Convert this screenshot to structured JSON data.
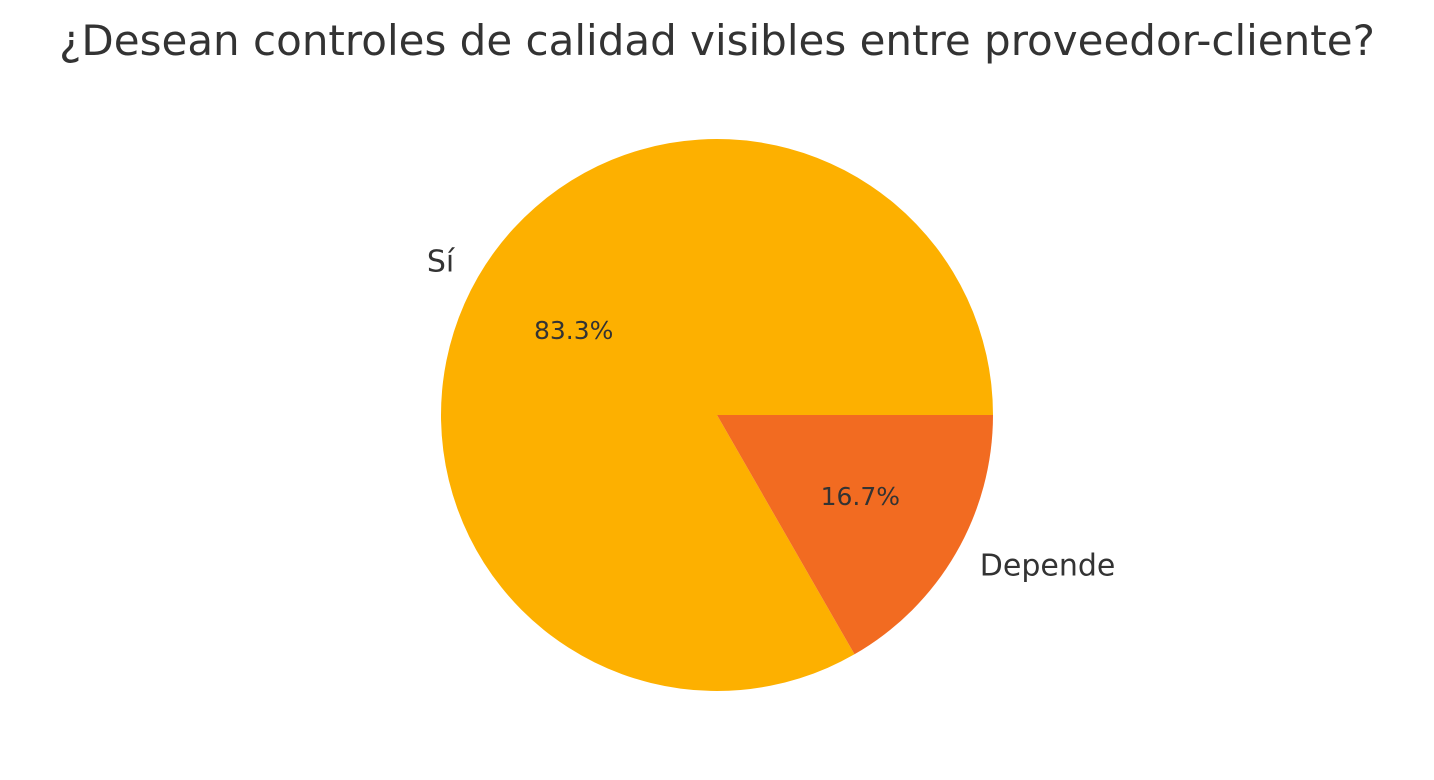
{
  "chart_data": {
    "type": "pie",
    "title": "¿Desean controles de calidad visibles entre proveedor-cliente?",
    "start_angle_deg": 0,
    "direction": "counterclockwise",
    "slices": [
      {
        "label": "Sí",
        "value": 83.3,
        "pct_label": "83.3%",
        "color": "#FDB000"
      },
      {
        "label": "Depende",
        "value": 16.7,
        "pct_label": "16.7%",
        "color": "#F26B21"
      }
    ]
  }
}
